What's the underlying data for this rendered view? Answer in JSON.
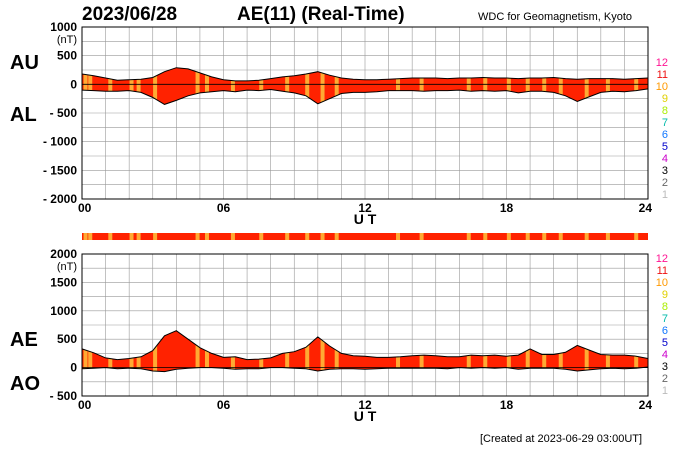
{
  "header": {
    "date": "2023/06/28",
    "index_title": "AE(11) (Real-Time)",
    "source": "WDC for Geomagnetism, Kyoto"
  },
  "footer": {
    "created": "[Created at 2023-06-29 03:00UT]"
  },
  "station_count_legend": {
    "values": [
      "12",
      "11",
      "10",
      "9",
      "8",
      "7",
      "6",
      "5",
      "4",
      "3",
      "2",
      "1"
    ],
    "colors": [
      "#ff1493",
      "#ee1111",
      "#ff9900",
      "#e0d000",
      "#aaee00",
      "#00bbaa",
      "#1177ff",
      "#0000cc",
      "#cc00cc",
      "#000000",
      "#666666",
      "#bbbbbb"
    ]
  },
  "colors": {
    "fill": "#ff2200",
    "low_station_fill": "#ffaa33",
    "grid": "#999999"
  },
  "chart_data": [
    {
      "type": "area",
      "panel": "AU/AL",
      "side_labels": [
        "AU",
        "AL"
      ],
      "unit": "(nT)",
      "xlabel": "U T",
      "xlim": [
        0,
        24
      ],
      "x_ticks": [
        "00",
        "06",
        "12",
        "18",
        "24"
      ],
      "ylim": [
        -2000,
        1000
      ],
      "y_ticks": [
        "1000",
        "500",
        "0",
        "- 500",
        "- 1000",
        "- 1500",
        "- 2000"
      ],
      "x": [
        0,
        0.5,
        1,
        1.5,
        2,
        2.5,
        3,
        3.5,
        4,
        4.5,
        5,
        5.5,
        6,
        6.5,
        7,
        7.5,
        8,
        8.5,
        9,
        9.5,
        10,
        10.5,
        11,
        11.5,
        12,
        12.5,
        13,
        13.5,
        14,
        14.5,
        15,
        15.5,
        16,
        16.5,
        17,
        17.5,
        18,
        18.5,
        19,
        19.5,
        20,
        20.5,
        21,
        21.5,
        22,
        22.5,
        23,
        23.5,
        24
      ],
      "series": [
        {
          "name": "AU",
          "values": [
            180,
            150,
            110,
            70,
            80,
            90,
            120,
            220,
            290,
            270,
            200,
            130,
            80,
            60,
            60,
            70,
            100,
            130,
            150,
            180,
            220,
            160,
            110,
            90,
            80,
            80,
            90,
            100,
            110,
            110,
            110,
            100,
            110,
            110,
            120,
            110,
            110,
            100,
            110,
            110,
            120,
            100,
            90,
            100,
            100,
            100,
            90,
            100,
            110
          ]
        },
        {
          "name": "AL",
          "values": [
            -100,
            -110,
            -120,
            -120,
            -110,
            -140,
            -230,
            -350,
            -280,
            -200,
            -150,
            -130,
            -110,
            -130,
            -100,
            -110,
            -90,
            -120,
            -150,
            -200,
            -340,
            -250,
            -160,
            -140,
            -140,
            -130,
            -110,
            -110,
            -110,
            -120,
            -110,
            -110,
            -100,
            -120,
            -110,
            -120,
            -110,
            -150,
            -120,
            -120,
            -140,
            -200,
            -300,
            -220,
            -140,
            -120,
            -130,
            -110,
            -80
          ]
        }
      ],
      "low_station_times": [
        0.15,
        0.35,
        1.2,
        2.1,
        2.4,
        3.1,
        4.9,
        5.3,
        6.4,
        7.6,
        8.7,
        9.55,
        10.2,
        10.8,
        13.4,
        14.4,
        16.4,
        17.1,
        18.1,
        18.9,
        19.6,
        20.3,
        21.4,
        22.3,
        23.5
      ]
    },
    {
      "type": "area",
      "panel": "AE/AO",
      "side_labels": [
        "AE",
        "AO"
      ],
      "unit": "(nT)",
      "xlabel": "U T",
      "xlim": [
        0,
        24
      ],
      "x_ticks": [
        "00",
        "06",
        "12",
        "18",
        "24"
      ],
      "ylim": [
        -500,
        2000
      ],
      "y_ticks": [
        "2000",
        "1500",
        "1000",
        "500",
        "0",
        "- 500"
      ],
      "x": [
        0,
        0.5,
        1,
        1.5,
        2,
        2.5,
        3,
        3.5,
        4,
        4.5,
        5,
        5.5,
        6,
        6.5,
        7,
        7.5,
        8,
        8.5,
        9,
        9.5,
        10,
        10.5,
        11,
        11.5,
        12,
        12.5,
        13,
        13.5,
        14,
        14.5,
        15,
        15.5,
        16,
        16.5,
        17,
        17.5,
        18,
        18.5,
        19,
        19.5,
        20,
        20.5,
        21,
        21.5,
        22,
        22.5,
        23,
        23.5,
        24
      ],
      "series": [
        {
          "name": "AE",
          "values": [
            330,
            260,
            170,
            140,
            160,
            190,
            300,
            560,
            650,
            500,
            350,
            250,
            180,
            190,
            140,
            150,
            170,
            250,
            280,
            360,
            540,
            380,
            250,
            210,
            200,
            180,
            180,
            190,
            210,
            220,
            210,
            190,
            190,
            220,
            210,
            220,
            200,
            220,
            330,
            230,
            230,
            270,
            390,
            310,
            230,
            220,
            220,
            200,
            160
          ]
        },
        {
          "name": "AO",
          "values": [
            -20,
            -10,
            0,
            -20,
            -10,
            -20,
            -60,
            -70,
            -30,
            -10,
            0,
            0,
            -10,
            -30,
            -20,
            -20,
            0,
            0,
            -10,
            -20,
            -60,
            -30,
            -20,
            -20,
            -30,
            -20,
            -10,
            -10,
            -10,
            -10,
            -10,
            -20,
            0,
            -10,
            0,
            -10,
            0,
            -30,
            -10,
            -10,
            -10,
            -30,
            -60,
            -40,
            -20,
            -10,
            -20,
            -10,
            10
          ]
        }
      ]
    }
  ]
}
